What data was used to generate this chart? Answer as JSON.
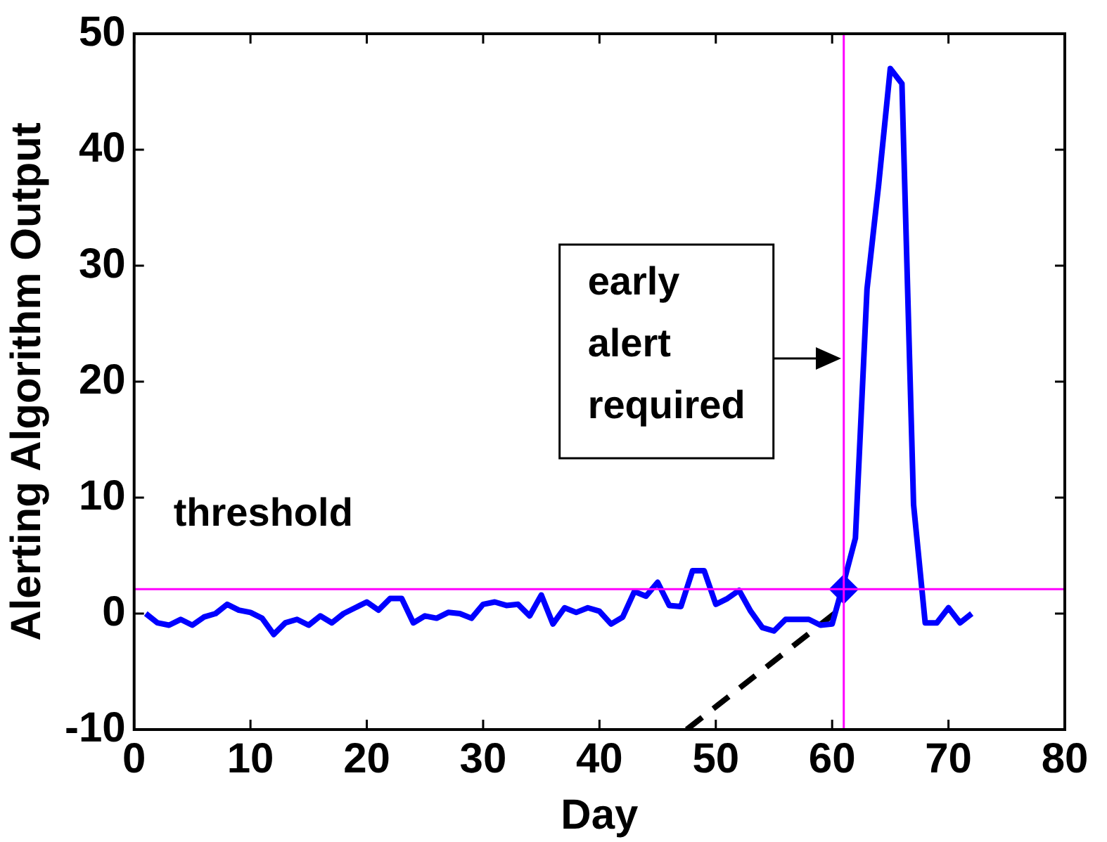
{
  "chart_data": {
    "type": "line",
    "xlabel": "Day",
    "ylabel": "Alerting Algorithm Output",
    "xlim": [
      0,
      80
    ],
    "xticks": [
      0,
      10,
      20,
      30,
      40,
      50,
      60,
      70,
      80
    ],
    "ylim": [
      -10,
      50
    ],
    "yticks": [
      -10,
      0,
      10,
      20,
      30,
      40,
      50
    ],
    "grid": false,
    "legend": false,
    "marker": "none",
    "line_style": "solid",
    "series": [
      {
        "color": "#0000ff",
        "x": [
          1,
          2,
          3,
          4,
          5,
          6,
          7,
          8,
          9,
          10,
          11,
          12,
          13,
          14,
          15,
          16,
          17,
          18,
          19,
          20,
          21,
          22,
          23,
          24,
          25,
          26,
          27,
          28,
          29,
          30,
          31,
          32,
          33,
          34,
          35,
          36,
          37,
          38,
          39,
          40,
          41,
          42,
          43,
          44,
          45,
          46,
          47,
          48,
          49,
          50,
          51,
          52,
          53,
          54,
          55,
          56,
          57,
          58,
          59,
          60,
          61,
          62,
          63,
          64,
          65,
          66,
          67,
          68,
          69,
          70,
          71,
          72
        ],
        "values": [
          0,
          -0.8,
          -1,
          -0.5,
          -1,
          -0.3,
          0,
          0.8,
          0.3,
          0.1,
          -0.4,
          -1.8,
          -0.8,
          -0.5,
          -1,
          -0.2,
          -0.8,
          0,
          0.5,
          1,
          0.3,
          1.3,
          1.3,
          -0.8,
          -0.2,
          -0.4,
          0.1,
          0,
          -0.4,
          0.8,
          1,
          0.7,
          0.8,
          -0.2,
          1.6,
          -0.9,
          0.5,
          0.1,
          0.5,
          0.2,
          -0.9,
          -0.3,
          1.9,
          1.5,
          2.7,
          0.7,
          0.6,
          3.7,
          3.7,
          0.8,
          1.3,
          2,
          0.2,
          -1.2,
          -1.5,
          -0.5,
          -0.5,
          -0.5,
          -1,
          -0.9,
          2.7,
          6.5,
          28,
          37,
          47,
          45.7,
          9.4,
          -0.8,
          -0.8,
          0.5,
          -0.8,
          0
        ]
      },
      {
        "type": "scatter",
        "color": "#0000ff",
        "marker": "diamond",
        "x": [
          61
        ],
        "values": [
          2.1
        ]
      },
      {
        "type": "line",
        "color": "#000000",
        "line_style": "dashed",
        "x": [
          47.5,
          60.2
        ],
        "values": [
          -10,
          0
        ]
      }
    ],
    "ref_lines": [
      {
        "axis": "y",
        "value": 2.1,
        "color": "#ff00ff",
        "label": "threshold"
      },
      {
        "axis": "x",
        "value": 61,
        "color": "#ff00ff"
      }
    ],
    "annotations": [
      {
        "text": "early alert required",
        "x": 61,
        "y": 22
      }
    ]
  }
}
